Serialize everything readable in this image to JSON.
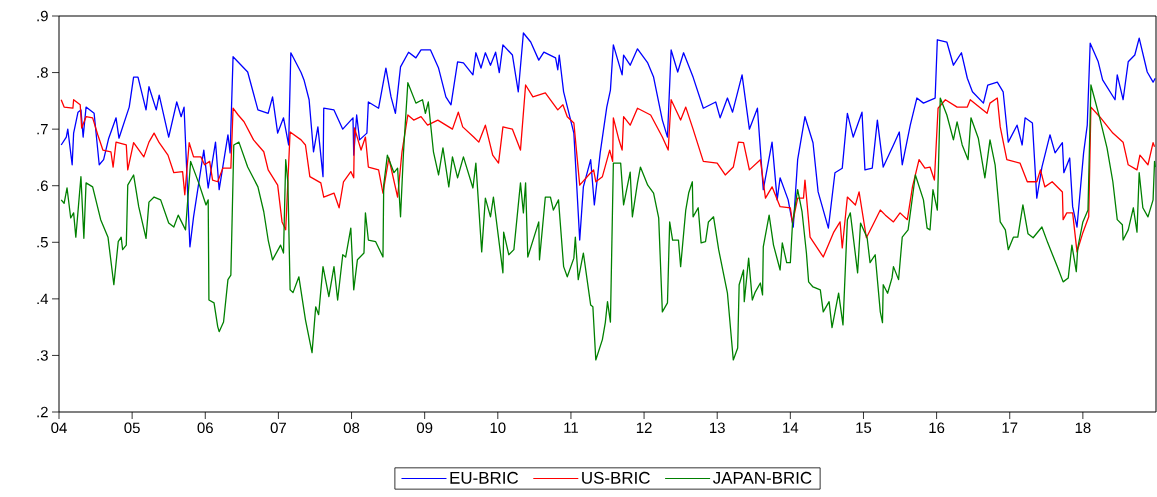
{
  "chart_data": {
    "type": "line",
    "xlim": [
      2004,
      2019
    ],
    "xticks": [
      {
        "value": 2004,
        "label": "04"
      },
      {
        "value": 2005,
        "label": "05"
      },
      {
        "value": 2006,
        "label": "06"
      },
      {
        "value": 2007,
        "label": "07"
      },
      {
        "value": 2008,
        "label": "08"
      },
      {
        "value": 2009,
        "label": "09"
      },
      {
        "value": 2010,
        "label": "10"
      },
      {
        "value": 2011,
        "label": "11"
      },
      {
        "value": 2012,
        "label": "12"
      },
      {
        "value": 2013,
        "label": "13"
      },
      {
        "value": 2014,
        "label": "14"
      },
      {
        "value": 2015,
        "label": "15"
      },
      {
        "value": 2016,
        "label": "16"
      },
      {
        "value": 2017,
        "label": "17"
      },
      {
        "value": 2018,
        "label": "18"
      }
    ],
    "ylim": [
      0.2,
      0.9
    ],
    "yticks": [
      {
        "value": 0.2,
        "label": ".2"
      },
      {
        "value": 0.3,
        "label": ".3"
      },
      {
        "value": 0.4,
        "label": ".4"
      },
      {
        "value": 0.5,
        "label": ".5"
      },
      {
        "value": 0.6,
        "label": ".6"
      },
      {
        "value": 0.7,
        "label": ".7"
      },
      {
        "value": 0.8,
        "label": ".8"
      },
      {
        "value": 0.9,
        "label": ".9"
      }
    ],
    "legend": "bottom",
    "line_style": "solid",
    "series": [
      {
        "name": "EU-BRIC",
        "color": "#0000ff",
        "x": [
          2004.03,
          2004.1,
          2004.12,
          2004.18,
          2004.2,
          2004.26,
          2004.3,
          2004.33,
          2004.37,
          2004.48,
          2004.55,
          2004.61,
          2004.68,
          2004.78,
          2004.82,
          2004.96,
          2005.02,
          2005.08,
          2005.19,
          2005.23,
          2005.33,
          2005.37,
          2005.5,
          2005.61,
          2005.67,
          2005.71,
          2005.79,
          2005.84,
          2005.98,
          2006.04,
          2006.14,
          2006.19,
          2006.31,
          2006.34,
          2006.38,
          2006.58,
          2006.72,
          2006.86,
          2006.92,
          2006.99,
          2007.07,
          2007.14,
          2007.17,
          2007.31,
          2007.35,
          2007.42,
          2007.48,
          2007.54,
          2007.61,
          2007.62,
          2007.76,
          2007.88,
          2008.02,
          2008.03,
          2008.07,
          2008.11,
          2008.21,
          2008.23,
          2008.37,
          2008.47,
          2008.54,
          2008.6,
          2008.67,
          2008.78,
          2008.88,
          2008.95,
          2009.08,
          2009.19,
          2009.29,
          2009.36,
          2009.45,
          2009.53,
          2009.66,
          2009.7,
          2009.77,
          2009.83,
          2009.9,
          2009.97,
          2010.02,
          2010.07,
          2010.2,
          2010.28,
          2010.35,
          2010.45,
          2010.56,
          2010.63,
          2010.79,
          2010.82,
          2010.84,
          2010.9,
          2011.04,
          2011.12,
          2011.17,
          2011.27,
          2011.32,
          2011.4,
          2011.49,
          2011.54,
          2011.58,
          2011.7,
          2011.72,
          2011.81,
          2011.91,
          2012.05,
          2012.13,
          2012.25,
          2012.32,
          2012.37,
          2012.46,
          2012.54,
          2012.67,
          2012.81,
          2012.98,
          2013.04,
          2013.14,
          2013.21,
          2013.34,
          2013.44,
          2013.55,
          2013.63,
          2013.75,
          2013.82,
          2013.86,
          2013.97,
          2014.04,
          2014.1,
          2014.2,
          2014.31,
          2014.38,
          2014.52,
          2014.61,
          2014.71,
          2014.78,
          2014.86,
          2014.98,
          2015.02,
          2015.12,
          2015.19,
          2015.27,
          2015.41,
          2015.49,
          2015.53,
          2015.64,
          2015.73,
          2015.82,
          2015.98,
          2016.01,
          2016.14,
          2016.23,
          2016.34,
          2016.42,
          2016.49,
          2016.64,
          2016.7,
          2016.83,
          2016.91,
          2016.98,
          2017.1,
          2017.17,
          2017.21,
          2017.31,
          2017.37,
          2017.44,
          2017.55,
          2017.62,
          2017.72,
          2017.74,
          2017.82,
          2017.86,
          2017.92,
          2018.01,
          2018.06,
          2018.1,
          2018.21,
          2018.27,
          2018.44,
          2018.47,
          2018.55,
          2018.62,
          2018.71,
          2018.77,
          2018.88,
          2018.96,
          2018.99
        ],
        "values": [
          0.672,
          0.686,
          0.7,
          0.637,
          0.693,
          0.73,
          0.734,
          0.686,
          0.739,
          0.728,
          0.637,
          0.646,
          0.684,
          0.72,
          0.684,
          0.739,
          0.792,
          0.792,
          0.734,
          0.775,
          0.734,
          0.76,
          0.686,
          0.748,
          0.722,
          0.739,
          0.492,
          0.545,
          0.663,
          0.596,
          0.677,
          0.593,
          0.69,
          0.658,
          0.828,
          0.801,
          0.734,
          0.728,
          0.757,
          0.693,
          0.72,
          0.672,
          0.835,
          0.8,
          0.787,
          0.752,
          0.66,
          0.704,
          0.616,
          0.737,
          0.734,
          0.7,
          0.72,
          0.654,
          0.725,
          0.681,
          0.693,
          0.748,
          0.737,
          0.808,
          0.757,
          0.728,
          0.81,
          0.836,
          0.826,
          0.84,
          0.84,
          0.808,
          0.757,
          0.743,
          0.819,
          0.817,
          0.796,
          0.835,
          0.808,
          0.835,
          0.813,
          0.836,
          0.8,
          0.849,
          0.831,
          0.766,
          0.87,
          0.854,
          0.822,
          0.836,
          0.826,
          0.805,
          0.831,
          0.766,
          0.693,
          0.504,
          0.598,
          0.646,
          0.566,
          0.658,
          0.739,
          0.769,
          0.849,
          0.796,
          0.831,
          0.813,
          0.842,
          0.817,
          0.792,
          0.716,
          0.686,
          0.84,
          0.801,
          0.835,
          0.792,
          0.737,
          0.748,
          0.72,
          0.755,
          0.73,
          0.796,
          0.7,
          0.737,
          0.593,
          0.677,
          0.575,
          0.614,
          0.575,
          0.527,
          0.646,
          0.722,
          0.676,
          0.589,
          0.525,
          0.623,
          0.631,
          0.728,
          0.686,
          0.73,
          0.628,
          0.631,
          0.716,
          0.633,
          0.672,
          0.695,
          0.637,
          0.707,
          0.755,
          0.746,
          0.755,
          0.858,
          0.854,
          0.813,
          0.835,
          0.79,
          0.766,
          0.746,
          0.778,
          0.783,
          0.766,
          0.677,
          0.707,
          0.672,
          0.72,
          0.711,
          0.578,
          0.633,
          0.69,
          0.658,
          0.676,
          0.623,
          0.649,
          0.563,
          0.527,
          0.658,
          0.707,
          0.852,
          0.819,
          0.787,
          0.752,
          0.796,
          0.752,
          0.819,
          0.831,
          0.861,
          0.801,
          0.783,
          0.79
        ]
      },
      {
        "name": "US-BRIC",
        "color": "#ff0000",
        "x": [
          2004.03,
          2004.07,
          2004.19,
          2004.2,
          2004.29,
          2004.31,
          2004.37,
          2004.46,
          2004.53,
          2004.6,
          2004.71,
          2004.74,
          2004.78,
          2004.92,
          2004.94,
          2005.02,
          2005.16,
          2005.23,
          2005.3,
          2005.37,
          2005.49,
          2005.57,
          2005.69,
          2005.72,
          2005.78,
          2005.84,
          2005.94,
          2005.99,
          2006.06,
          2006.1,
          2006.17,
          2006.24,
          2006.35,
          2006.38,
          2006.45,
          2006.53,
          2006.66,
          2006.8,
          2006.86,
          2006.99,
          2007.05,
          2007.1,
          2007.16,
          2007.31,
          2007.37,
          2007.43,
          2007.58,
          2007.62,
          2007.76,
          2007.83,
          2007.89,
          2007.99,
          2008.03,
          2008.04,
          2008.13,
          2008.19,
          2008.23,
          2008.37,
          2008.43,
          2008.51,
          2008.63,
          2008.69,
          2008.77,
          2008.85,
          2008.95,
          2009.04,
          2009.18,
          2009.38,
          2009.46,
          2009.52,
          2009.67,
          2009.74,
          2009.83,
          2009.93,
          2010.01,
          2010.07,
          2010.2,
          2010.31,
          2010.38,
          2010.48,
          2010.65,
          2010.82,
          2010.89,
          2010.95,
          2011.04,
          2011.12,
          2011.27,
          2011.31,
          2011.34,
          2011.43,
          2011.53,
          2011.57,
          2011.58,
          2011.65,
          2011.7,
          2011.72,
          2011.81,
          2011.91,
          2012.09,
          2012.25,
          2012.33,
          2012.37,
          2012.5,
          2012.57,
          2012.67,
          2012.81,
          2013.0,
          2013.11,
          2013.22,
          2013.29,
          2013.36,
          2013.44,
          2013.59,
          2013.66,
          2013.75,
          2013.86,
          2014.0,
          2014.03,
          2014.1,
          2014.18,
          2014.2,
          2014.27,
          2014.45,
          2014.59,
          2014.68,
          2014.71,
          2014.78,
          2014.89,
          2014.94,
          2015.04,
          2015.13,
          2015.23,
          2015.3,
          2015.41,
          2015.5,
          2015.6,
          2015.67,
          2015.76,
          2015.84,
          2015.91,
          2015.97,
          2016.02,
          2016.12,
          2016.28,
          2016.42,
          2016.46,
          2016.69,
          2016.73,
          2016.83,
          2016.87,
          2016.96,
          2017.14,
          2017.24,
          2017.37,
          2017.42,
          2017.48,
          2017.58,
          2017.72,
          2017.73,
          2017.78,
          2017.86,
          2017.92,
          2018.0,
          2018.08,
          2018.11,
          2018.23,
          2018.41,
          2018.55,
          2018.62,
          2018.74,
          2018.78,
          2018.89,
          2018.96,
          2018.98
        ],
        "values": [
          0.752,
          0.739,
          0.737,
          0.752,
          0.743,
          0.702,
          0.722,
          0.72,
          0.69,
          0.663,
          0.66,
          0.633,
          0.677,
          0.672,
          0.628,
          0.676,
          0.651,
          0.677,
          0.693,
          0.676,
          0.654,
          0.623,
          0.625,
          0.584,
          0.676,
          0.651,
          0.651,
          0.637,
          0.643,
          0.61,
          0.607,
          0.631,
          0.631,
          0.737,
          0.725,
          0.713,
          0.681,
          0.66,
          0.628,
          0.601,
          0.536,
          0.522,
          0.695,
          0.681,
          0.672,
          0.616,
          0.605,
          0.58,
          0.587,
          0.561,
          0.607,
          0.625,
          0.614,
          0.702,
          0.663,
          0.686,
          0.633,
          0.628,
          0.587,
          0.649,
          0.58,
          0.66,
          0.725,
          0.716,
          0.722,
          0.707,
          0.716,
          0.7,
          0.73,
          0.704,
          0.686,
          0.677,
          0.707,
          0.654,
          0.64,
          0.704,
          0.7,
          0.663,
          0.778,
          0.757,
          0.764,
          0.734,
          0.743,
          0.722,
          0.711,
          0.601,
          0.623,
          0.628,
          0.607,
          0.616,
          0.663,
          0.643,
          0.72,
          0.684,
          0.663,
          0.722,
          0.707,
          0.737,
          0.725,
          0.686,
          0.663,
          0.752,
          0.716,
          0.739,
          0.7,
          0.643,
          0.64,
          0.619,
          0.633,
          0.677,
          0.676,
          0.628,
          0.646,
          0.578,
          0.598,
          0.563,
          0.561,
          0.534,
          0.578,
          0.578,
          0.61,
          0.509,
          0.474,
          0.517,
          0.536,
          0.49,
          0.58,
          0.566,
          0.589,
          0.508,
          0.531,
          0.557,
          0.548,
          0.536,
          0.552,
          0.54,
          0.598,
          0.646,
          0.631,
          0.633,
          0.61,
          0.737,
          0.752,
          0.739,
          0.739,
          0.752,
          0.728,
          0.746,
          0.755,
          0.704,
          0.646,
          0.64,
          0.607,
          0.607,
          0.628,
          0.598,
          0.607,
          0.589,
          0.54,
          0.552,
          0.552,
          0.483,
          0.517,
          0.545,
          0.739,
          0.722,
          0.693,
          0.677,
          0.637,
          0.628,
          0.654,
          0.637,
          0.676,
          0.669
        ]
      },
      {
        "name": "JAPAN-BRIC",
        "color": "#008000",
        "x": [
          2004.03,
          2004.07,
          2004.11,
          2004.16,
          2004.2,
          2004.23,
          2004.3,
          2004.34,
          2004.37,
          2004.46,
          2004.57,
          2004.67,
          2004.75,
          2004.81,
          2004.85,
          2004.87,
          2004.92,
          2004.94,
          2005.02,
          2005.09,
          2005.19,
          2005.23,
          2005.3,
          2005.39,
          2005.5,
          2005.57,
          2005.63,
          2005.73,
          2005.8,
          2005.91,
          2006.01,
          2006.04,
          2006.05,
          2006.12,
          2006.17,
          2006.19,
          2006.25,
          2006.31,
          2006.35,
          2006.39,
          2006.46,
          2006.58,
          2006.72,
          2006.8,
          2006.86,
          2006.92,
          2007.03,
          2007.07,
          2007.1,
          2007.13,
          2007.16,
          2007.2,
          2007.28,
          2007.37,
          2007.46,
          2007.51,
          2007.55,
          2007.61,
          2007.69,
          2007.76,
          2007.81,
          2007.88,
          2007.92,
          2007.99,
          2008.03,
          2008.08,
          2008.17,
          2008.19,
          2008.23,
          2008.33,
          2008.43,
          2008.44,
          2008.49,
          2008.58,
          2008.63,
          2008.67,
          2008.71,
          2008.77,
          2008.88,
          2008.97,
          2009.01,
          2009.05,
          2009.12,
          2009.19,
          2009.25,
          2009.33,
          2009.38,
          2009.45,
          2009.53,
          2009.66,
          2009.7,
          2009.78,
          2009.83,
          2009.9,
          2009.94,
          2010.07,
          2010.08,
          2010.15,
          2010.22,
          2010.31,
          2010.35,
          2010.38,
          2010.41,
          2010.56,
          2010.57,
          2010.65,
          2010.72,
          2010.76,
          2010.83,
          2010.9,
          2010.95,
          2011.04,
          2011.06,
          2011.1,
          2011.17,
          2011.27,
          2011.3,
          2011.34,
          2011.43,
          2011.47,
          2011.5,
          2011.54,
          2011.58,
          2011.68,
          2011.72,
          2011.81,
          2011.84,
          2011.91,
          2011.95,
          2012.05,
          2012.13,
          2012.2,
          2012.25,
          2012.32,
          2012.35,
          2012.39,
          2012.47,
          2012.5,
          2012.57,
          2012.61,
          2012.66,
          2012.67,
          2012.74,
          2012.78,
          2012.84,
          2012.88,
          2012.95,
          2013.02,
          2013.14,
          2013.22,
          2013.28,
          2013.3,
          2013.36,
          2013.37,
          2013.43,
          2013.48,
          2013.52,
          2013.59,
          2013.62,
          2013.63,
          2013.71,
          2013.77,
          2013.86,
          2013.89,
          2013.95,
          2014.0,
          2014.03,
          2014.1,
          2014.16,
          2014.22,
          2014.25,
          2014.31,
          2014.41,
          2014.45,
          2014.53,
          2014.57,
          2014.66,
          2014.72,
          2014.78,
          2014.82,
          2014.92,
          2014.96,
          2015.05,
          2015.09,
          2015.16,
          2015.23,
          2015.26,
          2015.27,
          2015.33,
          2015.39,
          2015.41,
          2015.48,
          2015.53,
          2015.61,
          2015.71,
          2015.82,
          2015.87,
          2015.91,
          2015.95,
          2016.01,
          2016.05,
          2016.14,
          2016.23,
          2016.28,
          2016.35,
          2016.43,
          2016.47,
          2016.57,
          2016.66,
          2016.73,
          2016.8,
          2016.87,
          2016.94,
          2016.98,
          2017.05,
          2017.11,
          2017.18,
          2017.25,
          2017.32,
          2017.44,
          2017.52,
          2017.65,
          2017.73,
          2017.8,
          2017.85,
          2017.91,
          2017.93,
          2018.0,
          2018.07,
          2018.11,
          2018.23,
          2018.33,
          2018.41,
          2018.47,
          2018.54,
          2018.55,
          2018.62,
          2018.69,
          2018.74,
          2018.77,
          2018.82,
          2018.89,
          2018.96,
          2018.98,
          2018.99
        ],
        "values": [
          0.575,
          0.569,
          0.596,
          0.543,
          0.552,
          0.509,
          0.616,
          0.507,
          0.605,
          0.598,
          0.54,
          0.509,
          0.425,
          0.501,
          0.509,
          0.487,
          0.495,
          0.601,
          0.619,
          0.563,
          0.507,
          0.571,
          0.58,
          0.575,
          0.534,
          0.527,
          0.548,
          0.522,
          0.643,
          0.605,
          0.566,
          0.575,
          0.398,
          0.393,
          0.351,
          0.342,
          0.359,
          0.434,
          0.442,
          0.672,
          0.677,
          0.633,
          0.598,
          0.554,
          0.504,
          0.469,
          0.495,
          0.481,
          0.646,
          0.605,
          0.416,
          0.411,
          0.439,
          0.363,
          0.305,
          0.386,
          0.372,
          0.457,
          0.404,
          0.457,
          0.398,
          0.478,
          0.474,
          0.525,
          0.416,
          0.469,
          0.481,
          0.552,
          0.504,
          0.501,
          0.474,
          0.601,
          0.654,
          0.623,
          0.631,
          0.545,
          0.658,
          0.782,
          0.746,
          0.752,
          0.728,
          0.748,
          0.66,
          0.619,
          0.667,
          0.598,
          0.651,
          0.614,
          0.651,
          0.596,
          0.64,
          0.483,
          0.578,
          0.545,
          0.58,
          0.446,
          0.518,
          0.478,
          0.487,
          0.605,
          0.552,
          0.605,
          0.474,
          0.536,
          0.469,
          0.58,
          0.58,
          0.557,
          0.575,
          0.457,
          0.439,
          0.472,
          0.509,
          0.434,
          0.481,
          0.389,
          0.386,
          0.292,
          0.328,
          0.358,
          0.395,
          0.359,
          0.64,
          0.64,
          0.566,
          0.624,
          0.545,
          0.605,
          0.633,
          0.601,
          0.587,
          0.543,
          0.377,
          0.393,
          0.536,
          0.504,
          0.504,
          0.457,
          0.557,
          0.587,
          0.607,
          0.545,
          0.561,
          0.499,
          0.501,
          0.536,
          0.545,
          0.487,
          0.41,
          0.292,
          0.313,
          0.425,
          0.451,
          0.395,
          0.472,
          0.398,
          0.412,
          0.428,
          0.407,
          0.492,
          0.548,
          0.495,
          0.451,
          0.499,
          0.464,
          0.464,
          0.534,
          0.593,
          0.554,
          0.481,
          0.43,
          0.421,
          0.416,
          0.377,
          0.395,
          0.349,
          0.41,
          0.354,
          0.54,
          0.552,
          0.446,
          0.534,
          0.508,
          0.464,
          0.478,
          0.377,
          0.358,
          0.425,
          0.41,
          0.437,
          0.457,
          0.434,
          0.509,
          0.522,
          0.619,
          0.575,
          0.525,
          0.522,
          0.593,
          0.557,
          0.755,
          0.725,
          0.681,
          0.713,
          0.672,
          0.646,
          0.72,
          0.684,
          0.614,
          0.681,
          0.637,
          0.536,
          0.522,
          0.487,
          0.509,
          0.509,
          0.566,
          0.515,
          0.508,
          0.527,
          0.499,
          0.457,
          0.43,
          0.437,
          0.495,
          0.448,
          0.49,
          0.536,
          0.557,
          0.778,
          0.72,
          0.667,
          0.607,
          0.54,
          0.531,
          0.504,
          0.522,
          0.561,
          0.518,
          0.623,
          0.561,
          0.545,
          0.575,
          0.643,
          0.633
        ]
      }
    ]
  }
}
